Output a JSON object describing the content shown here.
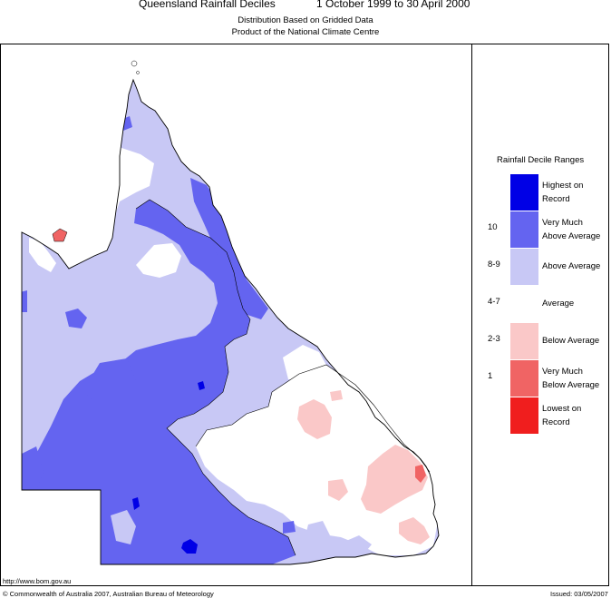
{
  "header": {
    "title": "Queensland Rainfall Deciles",
    "period": "1 October 1999 to 30 April 2000",
    "subtitle1": "Distribution Based on Gridded Data",
    "subtitle2": "Product of the National Climate Centre"
  },
  "legend": {
    "title": "Rainfall Decile Ranges",
    "entries": [
      {
        "range": "",
        "label_line1": "Highest on",
        "label_line2": "Record",
        "color": "#0000e6"
      },
      {
        "range": "10",
        "label_line1": "Very Much",
        "label_line2": "Above Average",
        "color": "#6464f0"
      },
      {
        "range": "8-9",
        "label_line1": "Above Average",
        "label_line2": "",
        "color": "#c8c8f5"
      },
      {
        "range": "4-7",
        "label_line1": "Average",
        "label_line2": "",
        "color": "#ffffff"
      },
      {
        "range": "2-3",
        "label_line1": "Below Average",
        "label_line2": "",
        "color": "#fac8c8"
      },
      {
        "range": "1",
        "label_line1": "Very Much",
        "label_line2": "Below Average",
        "color": "#f06464"
      },
      {
        "range": "",
        "label_line1": "Lowest on",
        "label_line2": "Record",
        "color": "#f01e1e"
      }
    ]
  },
  "footer": {
    "url": "http://www.bom.gov.au",
    "copyright": "© Commonwealth of Australia 2007, Australian Bureau of Meteorology",
    "issued": "Issued: 03/05/2007"
  },
  "colors": {
    "highest": "#0000e6",
    "very_much_above": "#6464f0",
    "above": "#c8c8f5",
    "average": "#ffffff",
    "below": "#fac8c8",
    "very_much_below": "#f06464",
    "lowest": "#f01e1e"
  }
}
